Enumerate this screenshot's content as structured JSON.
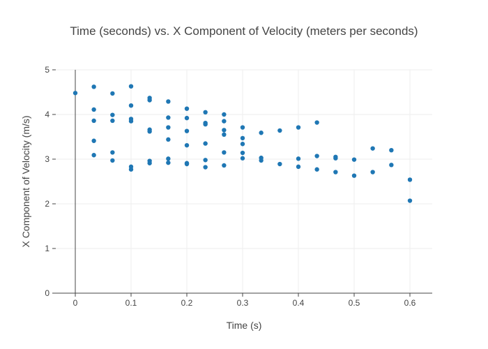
{
  "chart_data": {
    "type": "scatter",
    "title": "Time (seconds) vs. X Component of Velocity (meters per seconds)",
    "xlabel": "Time (s)",
    "ylabel": "X Component of Velocity (m/s)",
    "xlim": [
      -0.035,
      0.64
    ],
    "ylim": [
      0,
      5
    ],
    "xticks": [
      0,
      0.1,
      0.2,
      0.3,
      0.4,
      0.5,
      0.6
    ],
    "xtick_labels": [
      "0",
      "0.1",
      "0.2",
      "0.3",
      "0.4",
      "0.5",
      "0.6"
    ],
    "yticks": [
      0,
      1,
      2,
      3,
      4,
      5
    ],
    "ytick_labels": [
      "0",
      "1",
      "2",
      "3",
      "4",
      "5"
    ],
    "grid": true,
    "marker_color": "#1f77b4",
    "points": [
      [
        0,
        4.48
      ],
      [
        0.0333,
        4.62
      ],
      [
        0.0333,
        4.11
      ],
      [
        0.0333,
        3.86
      ],
      [
        0.0333,
        3.41
      ],
      [
        0.0333,
        3.09
      ],
      [
        0.0667,
        4.47
      ],
      [
        0.0667,
        3.99
      ],
      [
        0.0667,
        3.86
      ],
      [
        0.0667,
        3.15
      ],
      [
        0.0667,
        2.97
      ],
      [
        0.1,
        4.63
      ],
      [
        0.1,
        4.2
      ],
      [
        0.1,
        3.9
      ],
      [
        0.1,
        3.85
      ],
      [
        0.1,
        2.83
      ],
      [
        0.1,
        2.77
      ],
      [
        0.1333,
        4.37
      ],
      [
        0.1333,
        4.32
      ],
      [
        0.1333,
        3.66
      ],
      [
        0.1333,
        3.62
      ],
      [
        0.1333,
        2.96
      ],
      [
        0.1333,
        2.91
      ],
      [
        0.1667,
        4.29
      ],
      [
        0.1667,
        3.93
      ],
      [
        0.1667,
        3.71
      ],
      [
        0.1667,
        3.44
      ],
      [
        0.1667,
        3.01
      ],
      [
        0.1667,
        2.92
      ],
      [
        0.2,
        4.13
      ],
      [
        0.2,
        3.92
      ],
      [
        0.2,
        3.63
      ],
      [
        0.2,
        3.31
      ],
      [
        0.2,
        2.91
      ],
      [
        0.2,
        2.89
      ],
      [
        0.2333,
        4.05
      ],
      [
        0.2333,
        3.81
      ],
      [
        0.2333,
        3.78
      ],
      [
        0.2333,
        3.35
      ],
      [
        0.2333,
        2.98
      ],
      [
        0.2333,
        2.82
      ],
      [
        0.2667,
        4.0
      ],
      [
        0.2667,
        3.85
      ],
      [
        0.2667,
        3.65
      ],
      [
        0.2667,
        3.55
      ],
      [
        0.2667,
        3.15
      ],
      [
        0.2667,
        2.86
      ],
      [
        0.3,
        3.71
      ],
      [
        0.3,
        3.47
      ],
      [
        0.3,
        3.34
      ],
      [
        0.3,
        3.14
      ],
      [
        0.3,
        3.02
      ],
      [
        0.3333,
        3.59
      ],
      [
        0.3333,
        3.03
      ],
      [
        0.3333,
        2.97
      ],
      [
        0.3667,
        3.64
      ],
      [
        0.3667,
        2.89
      ],
      [
        0.4,
        3.71
      ],
      [
        0.4,
        3.01
      ],
      [
        0.4,
        2.83
      ],
      [
        0.4333,
        3.82
      ],
      [
        0.4333,
        3.07
      ],
      [
        0.4333,
        2.77
      ],
      [
        0.4667,
        3.05
      ],
      [
        0.4667,
        3.02
      ],
      [
        0.4667,
        2.71
      ],
      [
        0.5,
        2.99
      ],
      [
        0.5,
        2.63
      ],
      [
        0.5333,
        3.24
      ],
      [
        0.5333,
        2.71
      ],
      [
        0.5667,
        3.2
      ],
      [
        0.5667,
        2.87
      ],
      [
        0.6,
        2.54
      ],
      [
        0.6,
        2.07
      ]
    ]
  }
}
